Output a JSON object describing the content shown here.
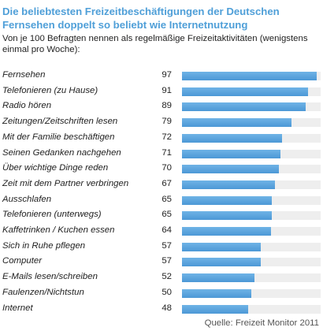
{
  "header": {
    "title": "Die beliebtesten Freizeitbeschäftigungen der Deutschen Fernsehen doppelt so beliebt wie Internetnutzung",
    "subtitle": "Von je 100 Befragten nennen als regelmäßige Freizeitaktivitäten (wenigstens einmal pro Woche):"
  },
  "chart_data": {
    "type": "bar",
    "orientation": "horizontal",
    "xlim": [
      0,
      100
    ],
    "categories": [
      "Fernsehen",
      "Telefonieren (zu Hause)",
      "Radio hören",
      "Zeitungen/Zeitschriften lesen",
      "Mit der Familie beschäftigen",
      "Seinen Gedanken nachgehen",
      "Über wichtige Dinge reden",
      "Zeit mit dem Partner verbringen",
      "Ausschlafen",
      "Telefonieren (unterwegs)",
      "Kaffetrinken / Kuchen essen",
      "Sich in Ruhe pflegen",
      "Computer",
      "E-Mails lesen/schreiben",
      "Faulenzen/Nichtstun",
      "Internet"
    ],
    "values": [
      97,
      91,
      89,
      79,
      72,
      71,
      70,
      67,
      65,
      65,
      64,
      57,
      57,
      52,
      50,
      48
    ],
    "colors": {
      "bar": "#5aa5de",
      "track": "#eeeeee",
      "title": "#4f9fd8"
    }
  },
  "footer": {
    "source": "Quelle: Freizeit Monitor 2011"
  }
}
